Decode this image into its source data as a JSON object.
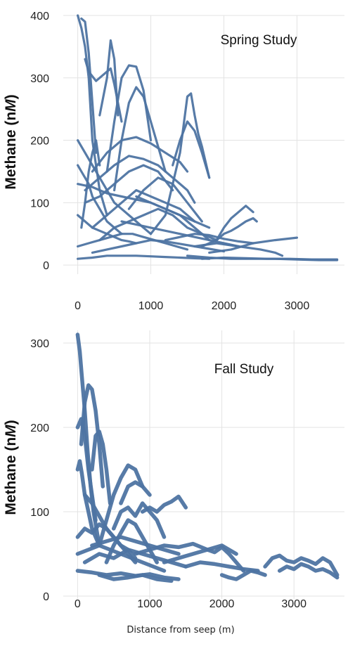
{
  "colors": {
    "series": "#4e74a2",
    "grid": "#e3e3e3",
    "axis_text": "#222222"
  },
  "xlabel": "Distance from seep (m)",
  "chart_data": [
    {
      "type": "line",
      "title": "Spring Study",
      "ylabel": "Methane (nM)",
      "ylabel_main": "Methane (n",
      "ylabel_unit": "M",
      "ylabel_end": ")",
      "xlim": [
        -150,
        3650
      ],
      "ylim": [
        -10,
        400
      ],
      "xticks": [
        "0",
        "1000",
        "2000",
        "3000"
      ],
      "yticks": [
        "0",
        "100",
        "200",
        "300",
        "400"
      ],
      "grid": true,
      "legend": "none",
      "series": [
        {
          "x": [
            0,
            50,
            100,
            150,
            200,
            300,
            400
          ],
          "y": [
            400,
            380,
            350,
            300,
            200,
            120,
            80
          ]
        },
        {
          "x": [
            50,
            100,
            150,
            200,
            250
          ],
          "y": [
            395,
            390,
            340,
            260,
            180
          ]
        },
        {
          "x": [
            100,
            150,
            250,
            350,
            450,
            500,
            600
          ],
          "y": [
            330,
            310,
            295,
            305,
            315,
            290,
            230
          ]
        },
        {
          "x": [
            300,
            400,
            450,
            500,
            550
          ],
          "y": [
            240,
            300,
            360,
            330,
            240
          ]
        },
        {
          "x": [
            400,
            500,
            600,
            700,
            800,
            900,
            1000
          ],
          "y": [
            150,
            230,
            300,
            320,
            318,
            280,
            200
          ]
        },
        {
          "x": [
            500,
            600,
            700,
            800,
            900,
            1000,
            1100,
            1200
          ],
          "y": [
            120,
            200,
            260,
            285,
            270,
            230,
            190,
            150
          ]
        },
        {
          "x": [
            200,
            400,
            600,
            800,
            1000,
            1200,
            1400,
            1500
          ],
          "y": [
            150,
            180,
            200,
            205,
            195,
            180,
            165,
            150
          ]
        },
        {
          "x": [
            100,
            300,
            500,
            700,
            900,
            1100,
            1300,
            1500,
            1600
          ],
          "y": [
            120,
            140,
            160,
            175,
            170,
            160,
            140,
            120,
            100
          ]
        },
        {
          "x": [
            0,
            200,
            400,
            600,
            800,
            1000,
            1200,
            1400,
            1600,
            1800
          ],
          "y": [
            130,
            125,
            115,
            110,
            105,
            100,
            90,
            80,
            70,
            60
          ]
        },
        {
          "x": [
            1000,
            1200,
            1400,
            1500,
            1550,
            1600,
            1650,
            1700,
            1800
          ],
          "y": [
            50,
            80,
            180,
            270,
            275,
            240,
            210,
            190,
            140
          ]
        },
        {
          "x": [
            1300,
            1400,
            1500,
            1600,
            1700,
            1800
          ],
          "y": [
            160,
            200,
            230,
            215,
            180,
            140
          ]
        },
        {
          "x": [
            0,
            100,
            200,
            300,
            400,
            500,
            600,
            700,
            800,
            900,
            1000
          ],
          "y": [
            200,
            180,
            160,
            140,
            120,
            100,
            90,
            80,
            70,
            60,
            50
          ]
        },
        {
          "x": [
            0,
            50,
            100,
            150,
            200,
            300,
            400,
            500,
            600
          ],
          "y": [
            160,
            150,
            140,
            130,
            110,
            90,
            70,
            60,
            50
          ]
        },
        {
          "x": [
            100,
            300,
            500,
            700,
            900,
            1100,
            1300
          ],
          "y": [
            100,
            110,
            130,
            150,
            160,
            150,
            120
          ]
        },
        {
          "x": [
            200,
            400,
            600,
            800,
            1000,
            1200,
            1400,
            1600
          ],
          "y": [
            60,
            80,
            100,
            120,
            110,
            100,
            90,
            70
          ]
        },
        {
          "x": [
            300,
            500,
            700,
            900,
            1100,
            1300,
            1500,
            1700,
            1900
          ],
          "y": [
            40,
            60,
            70,
            80,
            90,
            80,
            60,
            50,
            40
          ]
        },
        {
          "x": [
            1700,
            1900,
            2000,
            2100,
            2200,
            2300,
            2400
          ],
          "y": [
            30,
            40,
            60,
            75,
            85,
            95,
            85
          ]
        },
        {
          "x": [
            1900,
            2000,
            2100,
            2200,
            2300,
            2400,
            2450
          ],
          "y": [
            40,
            50,
            55,
            62,
            70,
            75,
            70
          ]
        },
        {
          "x": [
            1800,
            2100,
            2400,
            2700,
            3000
          ],
          "y": [
            20,
            25,
            35,
            40,
            44
          ]
        },
        {
          "x": [
            1600,
            1900,
            2200,
            2500,
            2700,
            2800
          ],
          "y": [
            30,
            35,
            30,
            25,
            20,
            15
          ]
        },
        {
          "x": [
            1500,
            1800,
            2100,
            2400,
            2700,
            3000,
            3300,
            3550
          ],
          "y": [
            15,
            12,
            10,
            10,
            10,
            9,
            8,
            8
          ]
        },
        {
          "x": [
            1700,
            2000,
            2300,
            2600,
            2900,
            3200,
            3550
          ],
          "y": [
            10,
            12,
            11,
            10,
            10,
            9,
            9
          ]
        },
        {
          "x": [
            0,
            200,
            400,
            600,
            800,
            1000,
            1200,
            1400,
            1600,
            1800
          ],
          "y": [
            10,
            12,
            15,
            15,
            15,
            14,
            13,
            12,
            11,
            10
          ]
        },
        {
          "x": [
            0,
            150,
            300,
            450,
            600,
            750,
            900,
            1050,
            1200,
            1350,
            1500
          ],
          "y": [
            30,
            35,
            40,
            45,
            50,
            50,
            45,
            40,
            35,
            30,
            25
          ]
        },
        {
          "x": [
            200,
            400,
            600,
            800,
            1000,
            1200,
            1400,
            1600,
            1800,
            2000
          ],
          "y": [
            20,
            25,
            30,
            35,
            40,
            38,
            34,
            30,
            26,
            22
          ]
        },
        {
          "x": [
            0,
            100,
            200,
            300,
            400,
            500,
            600,
            700,
            800
          ],
          "y": [
            80,
            70,
            60,
            55,
            50,
            45,
            40,
            38,
            35
          ]
        },
        {
          "x": [
            600,
            800,
            1000,
            1200,
            1400,
            1600,
            1800,
            2000,
            2200
          ],
          "y": [
            70,
            65,
            60,
            55,
            50,
            45,
            40,
            35,
            30
          ]
        },
        {
          "x": [
            800,
            1000,
            1200,
            1400,
            1600,
            1800
          ],
          "y": [
            110,
            100,
            90,
            80,
            60,
            40
          ]
        },
        {
          "x": [
            50,
            100,
            150,
            200,
            250,
            300
          ],
          "y": [
            60,
            100,
            150,
            180,
            200,
            160
          ]
        },
        {
          "x": [
            700,
            900,
            1100,
            1300,
            1500,
            1700
          ],
          "y": [
            90,
            120,
            140,
            130,
            100,
            70
          ]
        },
        {
          "x": [
            1200,
            1400,
            1600,
            1800,
            2000,
            2200,
            2400
          ],
          "y": [
            40,
            45,
            50,
            48,
            42,
            38,
            35
          ]
        }
      ]
    },
    {
      "type": "line",
      "title": "Fall Study",
      "ylabel": "Methane (nM)",
      "ylabel_main": "Methane (n",
      "ylabel_unit": "M",
      "ylabel_end": ")",
      "xlim": [
        -150,
        3700
      ],
      "ylim": [
        0,
        315
      ],
      "xticks": [
        "0",
        "1000",
        "2000",
        "3000"
      ],
      "yticks": [
        "0",
        "100",
        "200",
        "300"
      ],
      "grid": true,
      "legend": "none",
      "series": [
        {
          "x": [
            0,
            30,
            60,
            100,
            140,
            180,
            220,
            260,
            300
          ],
          "y": [
            310,
            290,
            260,
            220,
            170,
            130,
            100,
            80,
            60
          ]
        },
        {
          "x": [
            50,
            100,
            150,
            200,
            250,
            300,
            350
          ],
          "y": [
            180,
            230,
            250,
            245,
            220,
            180,
            130
          ]
        },
        {
          "x": [
            200,
            250,
            300,
            350,
            400,
            450
          ],
          "y": [
            150,
            190,
            195,
            180,
            150,
            110
          ]
        },
        {
          "x": [
            0,
            30,
            60,
            100,
            150,
            200,
            300
          ],
          "y": [
            150,
            160,
            145,
            120,
            100,
            80,
            60
          ]
        },
        {
          "x": [
            300,
            400,
            500,
            600,
            700,
            800,
            900
          ],
          "y": [
            60,
            90,
            120,
            140,
            155,
            150,
            130
          ]
        },
        {
          "x": [
            600,
            700,
            800,
            900,
            1000
          ],
          "y": [
            110,
            130,
            135,
            130,
            120
          ]
        },
        {
          "x": [
            500,
            600,
            700,
            800,
            900,
            1000,
            1100,
            1200
          ],
          "y": [
            80,
            100,
            105,
            95,
            110,
            100,
            90,
            70
          ]
        },
        {
          "x": [
            900,
            1000,
            1100,
            1200,
            1300,
            1400,
            1500
          ],
          "y": [
            100,
            105,
            100,
            108,
            112,
            118,
            105
          ]
        },
        {
          "x": [
            0,
            100,
            200,
            300,
            400,
            500,
            600,
            700,
            800
          ],
          "y": [
            70,
            80,
            75,
            85,
            80,
            70,
            60,
            50,
            40
          ]
        },
        {
          "x": [
            0,
            150,
            300,
            450,
            600,
            750,
            900,
            1050,
            1200
          ],
          "y": [
            50,
            55,
            60,
            55,
            50,
            45,
            40,
            35,
            30
          ]
        },
        {
          "x": [
            100,
            300,
            500,
            700,
            900,
            1100,
            1300,
            1500
          ],
          "y": [
            40,
            50,
            45,
            55,
            50,
            45,
            40,
            35
          ]
        },
        {
          "x": [
            800,
            1000,
            1200,
            1400,
            1600,
            1800,
            2000,
            2100,
            2200
          ],
          "y": [
            50,
            55,
            60,
            58,
            62,
            55,
            60,
            55,
            50
          ]
        },
        {
          "x": [
            1200,
            1400,
            1600,
            1800,
            1900,
            2000,
            2100,
            2200,
            2300
          ],
          "y": [
            40,
            45,
            50,
            55,
            52,
            58,
            50,
            40,
            30
          ]
        },
        {
          "x": [
            2000,
            2100,
            2200,
            2300,
            2400,
            2500,
            2600
          ],
          "y": [
            25,
            22,
            20,
            25,
            30,
            28,
            25
          ]
        },
        {
          "x": [
            2600,
            2700,
            2800,
            2900,
            3000,
            3100,
            3200,
            3300,
            3400,
            3500,
            3600
          ],
          "y": [
            35,
            45,
            48,
            42,
            40,
            45,
            42,
            38,
            45,
            40,
            25
          ]
        },
        {
          "x": [
            2800,
            2900,
            3000,
            3100,
            3200,
            3300,
            3400,
            3500,
            3600
          ],
          "y": [
            30,
            35,
            32,
            38,
            35,
            30,
            32,
            28,
            22
          ]
        },
        {
          "x": [
            0,
            200,
            400,
            600,
            800,
            1000,
            1200,
            1400
          ],
          "y": [
            30,
            28,
            25,
            27,
            24,
            26,
            22,
            20
          ]
        },
        {
          "x": [
            300,
            500,
            700,
            900,
            1100,
            1300
          ],
          "y": [
            25,
            20,
            22,
            25,
            20,
            18
          ]
        },
        {
          "x": [
            100,
            200,
            300,
            400,
            500,
            600,
            700,
            800
          ],
          "y": [
            120,
            110,
            95,
            80,
            70,
            60,
            55,
            45
          ]
        },
        {
          "x": [
            400,
            500,
            600,
            700,
            800,
            900,
            1000,
            1100
          ],
          "y": [
            40,
            60,
            75,
            90,
            85,
            70,
            55,
            40
          ]
        },
        {
          "x": [
            1500,
            1700,
            1900,
            2100,
            2300,
            2500
          ],
          "y": [
            35,
            40,
            38,
            35,
            32,
            30
          ]
        },
        {
          "x": [
            0,
            50,
            100,
            150,
            200,
            250
          ],
          "y": [
            200,
            210,
            190,
            150,
            120,
            90
          ]
        },
        {
          "x": [
            200,
            400,
            600,
            800,
            1000,
            1200,
            1400
          ],
          "y": [
            60,
            65,
            70,
            65,
            60,
            55,
            50
          ]
        }
      ]
    }
  ]
}
